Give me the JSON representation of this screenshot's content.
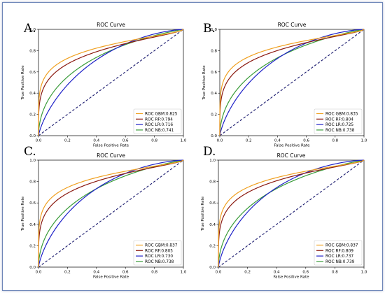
{
  "chart_data": [
    {
      "type": "line",
      "panel_letter": "A.",
      "title": "ROC Curve",
      "xlabel": "False Positive Rate",
      "ylabel": "True Positive Rate",
      "xlim": [
        0,
        1
      ],
      "ylim": [
        0,
        1
      ],
      "xticks": [
        "0.0",
        "0.2",
        "0.4",
        "0.6",
        "0.8",
        "1.0"
      ],
      "yticks": [
        "0.0",
        "0.2",
        "0.4",
        "0.6",
        "0.8",
        "1.0"
      ],
      "legend_position": "lower-right",
      "grid": false,
      "series": [
        {
          "name": "ROC GBM:0.825",
          "color": "#f0a020",
          "auc": 0.825
        },
        {
          "name": "ROC RF:0.794",
          "color": "#8b1a10",
          "auc": 0.794
        },
        {
          "name": "ROC LR:0.716",
          "color": "#1f22c8",
          "auc": 0.716
        },
        {
          "name": "ROC NB:0.741",
          "color": "#3a9c3a",
          "auc": 0.741
        }
      ]
    },
    {
      "type": "line",
      "panel_letter": "B.",
      "title": "ROC Curve",
      "xlabel": "False Positive Rate",
      "ylabel": "True Positive Rate",
      "xlim": [
        0,
        1
      ],
      "ylim": [
        0,
        1
      ],
      "xticks": [
        "0.0",
        "0.2",
        "0.4",
        "0.6",
        "0.8",
        "1.0"
      ],
      "yticks": [
        "0.0",
        "0.2",
        "0.4",
        "0.6",
        "0.8",
        "1.0"
      ],
      "legend_position": "lower-right",
      "grid": false,
      "series": [
        {
          "name": "ROC GBM:0.835",
          "color": "#f0a020",
          "auc": 0.835
        },
        {
          "name": "ROC RF:0.804",
          "color": "#8b1a10",
          "auc": 0.804
        },
        {
          "name": "ROC LR:0.725",
          "color": "#1f22c8",
          "auc": 0.725
        },
        {
          "name": "ROC NB:0.738",
          "color": "#3a9c3a",
          "auc": 0.738
        }
      ]
    },
    {
      "type": "line",
      "panel_letter": "C.",
      "title": "ROC Curve",
      "xlabel": "False Positive Rate",
      "ylabel": "True Positive Rate",
      "xlim": [
        0,
        1
      ],
      "ylim": [
        0,
        1
      ],
      "xticks": [
        "0.0",
        "0.2",
        "0.4",
        "0.6",
        "0.8",
        "1.0"
      ],
      "yticks": [
        "0.0",
        "0.2",
        "0.4",
        "0.6",
        "0.8",
        "1.0"
      ],
      "legend_position": "lower-right",
      "grid": false,
      "series": [
        {
          "name": "ROC GBM:0.837",
          "color": "#f0a020",
          "auc": 0.837
        },
        {
          "name": "ROC RF:0.805",
          "color": "#8b1a10",
          "auc": 0.805
        },
        {
          "name": "ROC LR:0.730",
          "color": "#1f22c8",
          "auc": 0.73
        },
        {
          "name": "ROC NB:0.738",
          "color": "#3a9c3a",
          "auc": 0.738
        }
      ]
    },
    {
      "type": "line",
      "panel_letter": "D.",
      "title": "ROC Curve",
      "xlabel": "False Positive Rate",
      "ylabel": "True Positive Rate",
      "xlim": [
        0,
        1
      ],
      "ylim": [
        0,
        1
      ],
      "xticks": [
        "0.0",
        "0.2",
        "0.4",
        "0.6",
        "0.8",
        "1.0"
      ],
      "yticks": [
        "0.0",
        "0.2",
        "0.4",
        "0.6",
        "0.8",
        "1.0"
      ],
      "legend_position": "lower-right",
      "grid": false,
      "series": [
        {
          "name": "ROC GBM:0.837",
          "color": "#f0a020",
          "auc": 0.837
        },
        {
          "name": "ROC RF:0.809",
          "color": "#8b1a10",
          "auc": 0.809
        },
        {
          "name": "ROC LR:0.737",
          "color": "#1f22c8",
          "auc": 0.737
        },
        {
          "name": "ROC NB:0.739",
          "color": "#3a9c3a",
          "auc": 0.739
        }
      ]
    }
  ],
  "chance_line_color": "#1a1a6e"
}
